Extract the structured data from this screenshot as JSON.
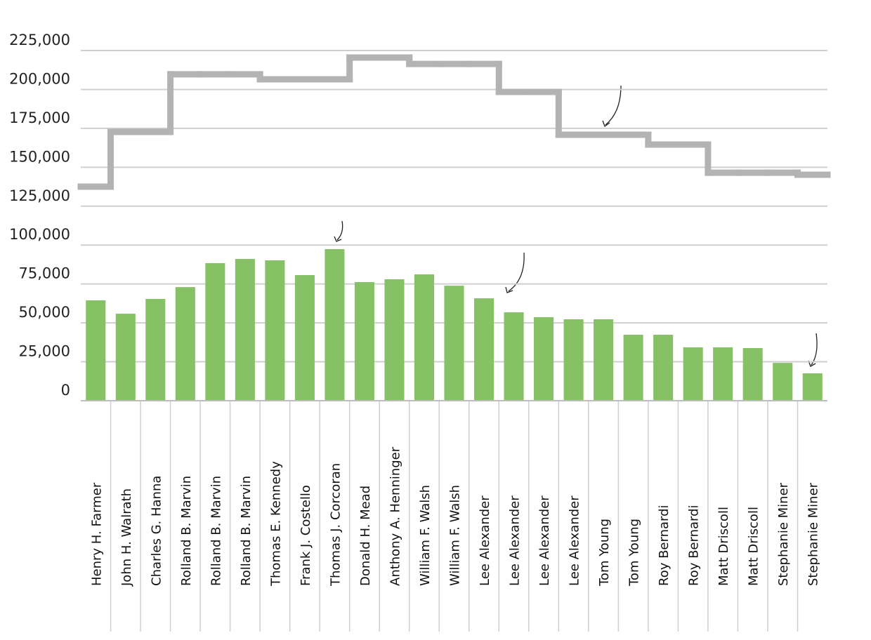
{
  "chart_data": {
    "type": "bar",
    "categories": [
      "Henry H. Farmer",
      "John H. Walrath",
      "Charles G. Hanna",
      "Rolland B. Marvin",
      "Rolland B. Marvin",
      "Rolland B. Marvin",
      "Thomas E. Kennedy",
      "Frank J. Costello",
      "Thomas J. Corcoran",
      "Donald H. Mead",
      "Anthony A. Henninger",
      "William F. Walsh",
      "William F. Walsh",
      "Lee Alexander",
      "Lee Alexander",
      "Lee Alexander",
      "Lee Alexander",
      "Tom Young",
      "Tom Young",
      "Roy Bernardi",
      "Roy Bernardi",
      "Matt Driscoll",
      "Matt Driscoll",
      "Stephanie Miner",
      "Stephanie Miner"
    ],
    "series": [
      {
        "type": "bar",
        "color": "#86c166",
        "values": [
          64500,
          55900,
          65400,
          73000,
          88400,
          91100,
          90200,
          80700,
          97400,
          76200,
          78000,
          81200,
          73900,
          65800,
          56800,
          53700,
          52300,
          52300,
          42400,
          42400,
          34300,
          34300,
          33800,
          24300,
          17600
        ]
      },
      {
        "type": "step",
        "color": "#b3b3b3",
        "values": [
          137500,
          172700,
          172700,
          209700,
          209700,
          209700,
          206500,
          206500,
          206500,
          220500,
          220500,
          216400,
          216400,
          216400,
          198400,
          198400,
          170900,
          170900,
          170900,
          164600,
          164600,
          146500,
          146500,
          146500,
          145200
        ]
      }
    ],
    "ylim": [
      0,
      225000
    ],
    "yticks": [
      0,
      {
        "value": 25000,
        "label": "25,000"
      },
      {
        "value": 50000,
        "label": "50,000"
      },
      {
        "value": 75000,
        "label": "75,000"
      },
      {
        "value": 100000,
        "label": "100,000"
      },
      {
        "value": 125000,
        "label": "125,000"
      },
      {
        "value": 150000,
        "label": "150,000"
      },
      {
        "value": 175000,
        "label": "175,000"
      },
      {
        "value": 200000,
        "label": "200,000"
      },
      {
        "value": 225000,
        "label": "225,000"
      }
    ],
    "grid": true
  }
}
